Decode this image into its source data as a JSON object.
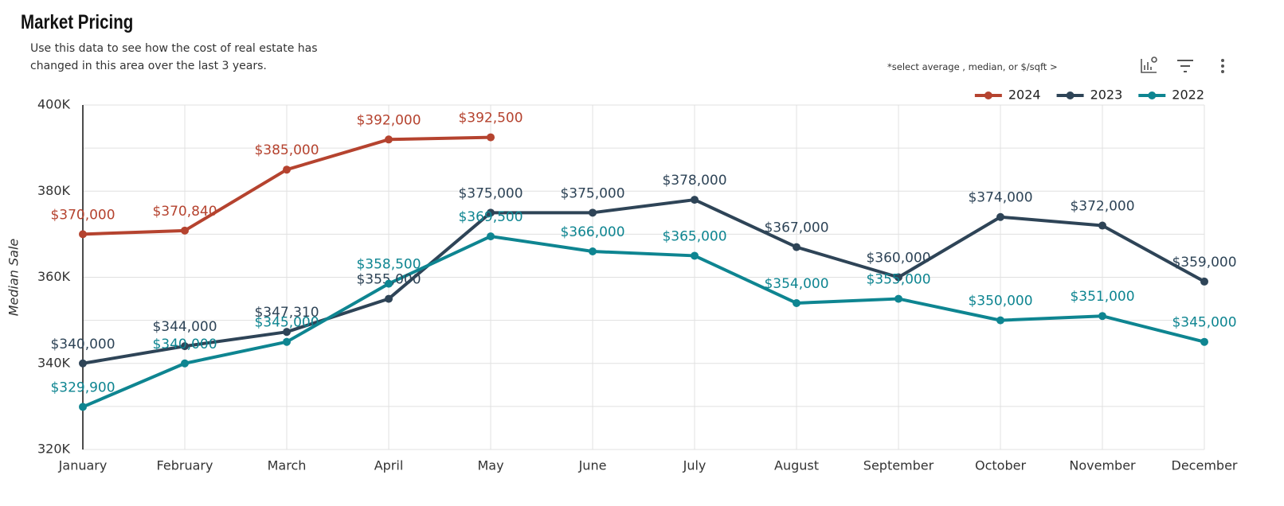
{
  "title": "Market Pricing",
  "subtitle": "Use this data to see how the cost of real estate has changed in this area over the last 3 years.",
  "select_note": "*select average , median, or $/sqft  >",
  "chart_data": {
    "type": "line",
    "ylabel": "Median Sale",
    "categories": [
      "January",
      "February",
      "March",
      "April",
      "May",
      "June",
      "July",
      "August",
      "September",
      "October",
      "November",
      "December"
    ],
    "series": [
      {
        "name": "2024",
        "color": "#b5432f",
        "values": [
          370000,
          370840,
          385000,
          392000,
          392500,
          null,
          null,
          null,
          null,
          null,
          null,
          null
        ],
        "value_labels": [
          "$370,000",
          "$370,840",
          "$385,000",
          "$392,000",
          "$392,500",
          null,
          null,
          null,
          null,
          null,
          null,
          null
        ]
      },
      {
        "name": "2023",
        "color": "#2e4457",
        "values": [
          340000,
          344000,
          347310,
          355000,
          375000,
          375000,
          378000,
          367000,
          360000,
          374000,
          372000,
          359000
        ],
        "value_labels": [
          "$340,000",
          "$344,000",
          "$347,310",
          "$355,000",
          "$375,000",
          "$375,000",
          "$378,000",
          "$367,000",
          "$360,000",
          "$374,000",
          "$372,000",
          "$359,000"
        ]
      },
      {
        "name": "2022",
        "color": "#0e8591",
        "values": [
          329900,
          340000,
          345000,
          358500,
          369500,
          366000,
          365000,
          354000,
          355000,
          350000,
          351000,
          345000
        ],
        "value_labels": [
          "$329,900",
          "$340,000",
          "$345,000",
          "$358,500",
          "$369,500",
          "$366,000",
          "$365,000",
          "$354,000",
          "$355,000",
          "$350,000",
          "$351,000",
          "$345,000"
        ]
      }
    ],
    "ylim": [
      320000,
      400000
    ],
    "yticks": [
      {
        "value": 320000,
        "label": "320K"
      },
      {
        "value": 340000,
        "label": "340K"
      },
      {
        "value": 360000,
        "label": "360K"
      },
      {
        "value": 380000,
        "label": "380K"
      },
      {
        "value": 400000,
        "label": "400K"
      }
    ],
    "minor_yticks": [
      330000,
      350000,
      370000,
      390000
    ],
    "grid": true,
    "legend": "top-right"
  }
}
